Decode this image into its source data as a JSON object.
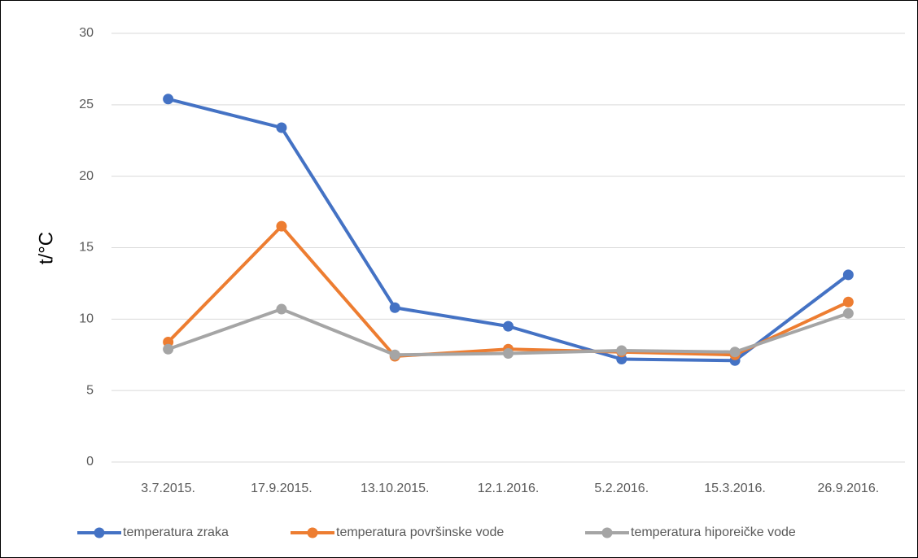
{
  "chart_data": {
    "type": "line",
    "y_label": "t/°C",
    "categories": [
      "3.7.2015.",
      "17.9.2015.",
      "13.10.2015.",
      "12.1.2016.",
      "5.2.2016.",
      "15.3.2016.",
      "26.9.2016."
    ],
    "series": [
      {
        "name": "temperatura zraka",
        "color": "#4472c4",
        "values": [
          25.4,
          23.4,
          10.8,
          9.5,
          7.2,
          7.1,
          13.1
        ]
      },
      {
        "name": "temperatura površinske vode",
        "color": "#ed7d31",
        "values": [
          8.4,
          16.5,
          7.4,
          7.9,
          7.7,
          7.5,
          11.2
        ]
      },
      {
        "name": "temperatura hiporeičke vode",
        "color": "#a5a5a5",
        "values": [
          7.9,
          10.7,
          7.5,
          7.6,
          7.8,
          7.7,
          10.4
        ]
      }
    ],
    "ylim": [
      0,
      30
    ],
    "yticks": [
      0,
      5,
      10,
      15,
      20,
      25,
      30
    ],
    "grid": true,
    "legend": "bottom"
  }
}
